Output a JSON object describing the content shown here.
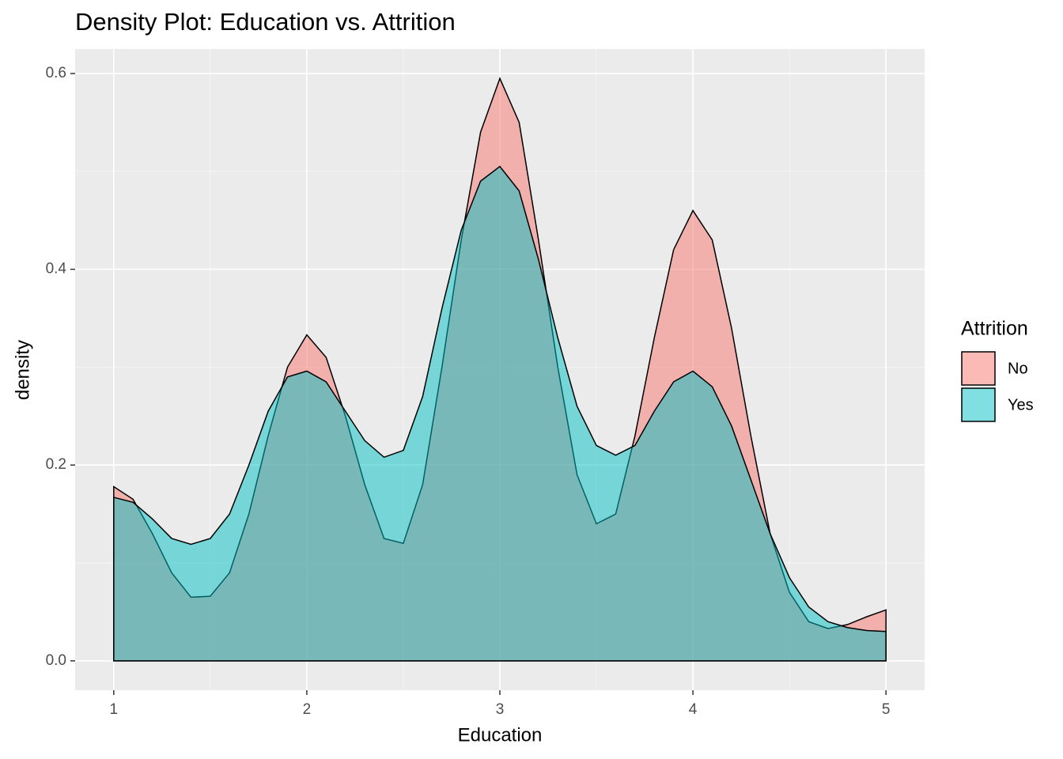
{
  "chart_data": {
    "type": "area",
    "title": "Density Plot: Education vs. Attrition",
    "x_label": "Education",
    "y_label": "density",
    "legend_title": "Attrition",
    "legend": "right",
    "x": [
      1.0,
      1.1,
      1.2,
      1.3,
      1.4,
      1.5,
      1.6,
      1.7,
      1.8,
      1.9,
      2.0,
      2.1,
      2.2,
      2.3,
      2.4,
      2.5,
      2.6,
      2.7,
      2.8,
      2.9,
      3.0,
      3.1,
      3.2,
      3.3,
      3.4,
      3.5,
      3.6,
      3.7,
      3.8,
      3.9,
      4.0,
      4.1,
      4.2,
      4.3,
      4.4,
      4.5,
      4.6,
      4.7,
      4.8,
      4.9,
      5.0
    ],
    "series": [
      {
        "name": "No",
        "color": "#F8766D",
        "values": [
          0.178,
          0.165,
          0.13,
          0.09,
          0.065,
          0.066,
          0.09,
          0.15,
          0.23,
          0.3,
          0.333,
          0.31,
          0.25,
          0.18,
          0.125,
          0.12,
          0.18,
          0.3,
          0.43,
          0.54,
          0.595,
          0.55,
          0.43,
          0.3,
          0.19,
          0.14,
          0.15,
          0.23,
          0.33,
          0.42,
          0.46,
          0.43,
          0.34,
          0.23,
          0.13,
          0.07,
          0.04,
          0.033,
          0.037,
          0.045,
          0.052
        ]
      },
      {
        "name": "Yes",
        "color": "#00BFC4",
        "values": [
          0.167,
          0.162,
          0.145,
          0.125,
          0.119,
          0.125,
          0.15,
          0.2,
          0.255,
          0.29,
          0.296,
          0.285,
          0.255,
          0.225,
          0.208,
          0.215,
          0.27,
          0.36,
          0.44,
          0.49,
          0.505,
          0.48,
          0.41,
          0.33,
          0.26,
          0.22,
          0.21,
          0.22,
          0.255,
          0.285,
          0.296,
          0.28,
          0.24,
          0.185,
          0.13,
          0.085,
          0.055,
          0.04,
          0.034,
          0.031,
          0.03
        ]
      }
    ],
    "xlim": [
      0.8,
      5.2
    ],
    "xticks": [
      1,
      2,
      3,
      4,
      5
    ],
    "x_minor_grid": [
      1.5,
      2.5,
      3.5,
      4.5
    ],
    "ylim": [
      -0.03,
      0.625
    ],
    "yticks": [
      {
        "value": 0,
        "label": "0.0"
      },
      0.2,
      0.4,
      0.6
    ],
    "y_minor_grid": [
      0.1,
      0.3,
      0.5
    ],
    "grid": true
  }
}
